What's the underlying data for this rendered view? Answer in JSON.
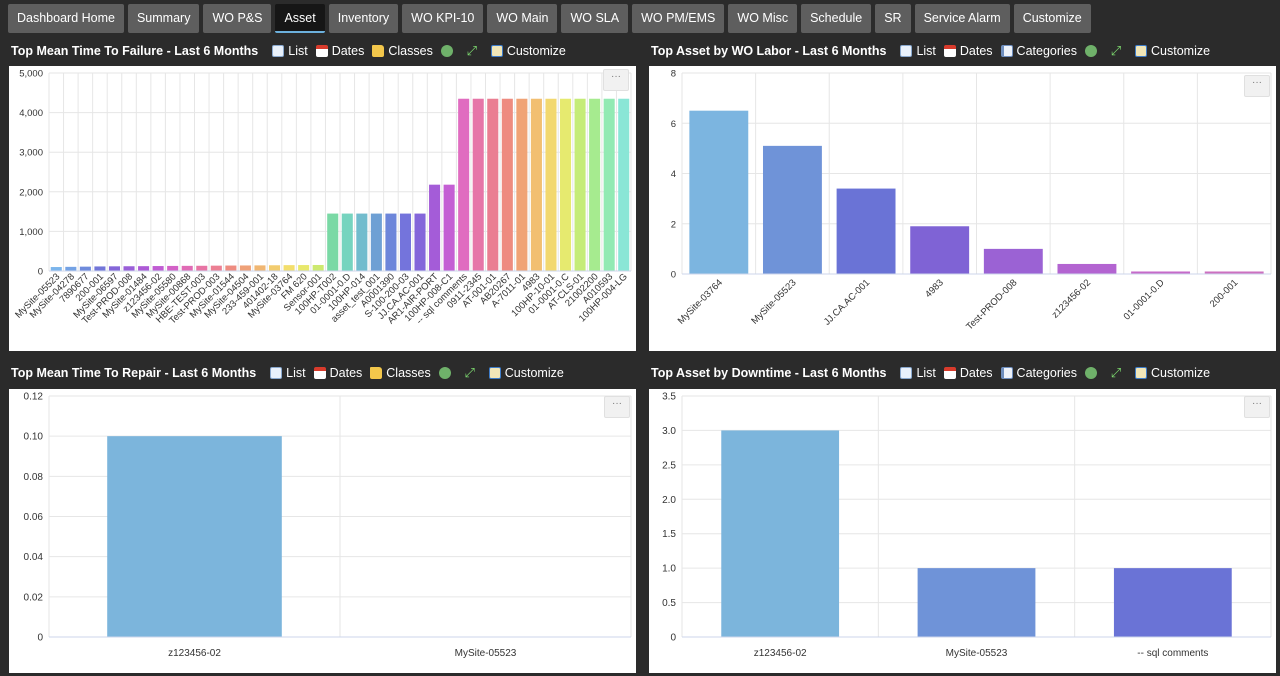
{
  "nav": {
    "tabs": [
      {
        "label": "Dashboard Home",
        "active": false
      },
      {
        "label": "Summary",
        "active": false
      },
      {
        "label": "WO P&S",
        "active": false
      },
      {
        "label": "Asset",
        "active": true
      },
      {
        "label": "Inventory",
        "active": false
      },
      {
        "label": "WO KPI-10",
        "active": false
      },
      {
        "label": "WO Main",
        "active": false
      },
      {
        "label": "WO SLA",
        "active": false
      },
      {
        "label": "WO PM/EMS",
        "active": false
      },
      {
        "label": "WO Misc",
        "active": false
      },
      {
        "label": "Schedule",
        "active": false
      },
      {
        "label": "SR",
        "active": false
      },
      {
        "label": "Service Alarm",
        "active": false
      },
      {
        "label": "Customize",
        "active": false
      }
    ]
  },
  "widgets": {
    "mttf": {
      "title": "Top Mean Time To Failure - Last 6 Months",
      "tools": {
        "list": "List",
        "dates": "Dates",
        "classes": "Classes",
        "customize": "Customize"
      },
      "menu": "···"
    },
    "labor": {
      "title": "Top Asset by WO Labor - Last 6 Months",
      "tools": {
        "list": "List",
        "dates": "Dates",
        "categories": "Categories",
        "customize": "Customize"
      },
      "menu": "···"
    },
    "mttr": {
      "title": "Top Mean Time To Repair - Last 6 Months",
      "tools": {
        "list": "List",
        "dates": "Dates",
        "classes": "Classes",
        "customize": "Customize"
      },
      "menu": "···"
    },
    "downtime": {
      "title": "Top Asset by Downtime - Last 6 Months",
      "tools": {
        "list": "List",
        "dates": "Dates",
        "categories": "Categories",
        "customize": "Customize"
      },
      "menu": "···"
    }
  },
  "chart_data": [
    {
      "id": "mttf",
      "type": "bar",
      "ylim": [
        0,
        5000
      ],
      "yticks": [
        0,
        1000,
        2000,
        3000,
        4000,
        5000
      ],
      "ytick_labels": [
        "0",
        "1,000",
        "2,000",
        "3,000",
        "4,000",
        "5,000"
      ],
      "grid": true,
      "categories": [
        "MySite-05523",
        "MySite-04278",
        "7890677",
        "200-001",
        "MySite-06597",
        "Test-PROD-008",
        "MySite-01484",
        "z123456-02",
        "MySite-05580",
        "MySite-00868",
        "HBE-TEST-003",
        "Test-PROD-003",
        "MySite-01544",
        "MySite-04504",
        "233-459-001",
        "401402-18",
        "MySite-03764",
        "FM 620",
        "Sensor-001",
        "100HP-T002",
        "01-0001-0.D",
        "100HP-014",
        "asset_test_001",
        "A0001390",
        "S-100-200-03",
        "JJ.CA.AC-001",
        "AR1-AIR-PORT",
        "100HP-008-C1",
        "-- sql comments",
        "0911-2345",
        "AT-001-01",
        "AB20267",
        "A-7011-01",
        "4983",
        "100HP-10-01",
        "01-0001-0.C",
        "AT-CLS-01",
        "21002200",
        "A010593",
        "100HP-004-LG"
      ],
      "values": [
        100,
        105,
        110,
        115,
        118,
        120,
        122,
        125,
        128,
        130,
        132,
        135,
        138,
        140,
        142,
        145,
        148,
        150,
        152,
        1450,
        1450,
        1450,
        1450,
        1450,
        1450,
        1450,
        2180,
        2180,
        4350,
        4350,
        4350,
        4350,
        4350,
        4350,
        4350,
        4350,
        4350,
        4350,
        4350,
        4350
      ],
      "colors": [
        "#7cb5ec",
        "#74a2e4",
        "#6f8bdc",
        "#7275d8",
        "#8466d8",
        "#9a5fd8",
        "#ad5ad6",
        "#c05cd3",
        "#d362c7",
        "#e06bb5",
        "#e774a4",
        "#ec7f93",
        "#ee8c80",
        "#efa178",
        "#f0b672",
        "#f2cc6f",
        "#f3de6c",
        "#e8e86c",
        "#cde96f",
        "#7ad9a5",
        "#76d4bf",
        "#72bccd",
        "#6ea0d4",
        "#6d86da",
        "#7474dc",
        "#8466da",
        "#a45cd8",
        "#c45fd4",
        "#e06cc0",
        "#e675a8",
        "#ea7e92",
        "#ee8b80",
        "#f0a376",
        "#f2bf71",
        "#f2d86f",
        "#e6ea6f",
        "#c5ec78",
        "#a6eb8f",
        "#92eab3",
        "#8ae6d6"
      ]
    },
    {
      "id": "labor",
      "type": "bar",
      "ylim": [
        0,
        8
      ],
      "yticks": [
        0,
        2,
        4,
        6,
        8
      ],
      "ytick_labels": [
        "0",
        "2",
        "4",
        "6",
        "8"
      ],
      "grid": true,
      "categories": [
        "MySite-03764",
        "MySite-05523",
        "JJ.CA.AC-001",
        "4983",
        "Test-PROD-008",
        "z123456-02",
        "01-0001-0.D",
        "200-001"
      ],
      "values": [
        6.5,
        5.1,
        3.4,
        1.9,
        1.0,
        0.4,
        0.1,
        0.1
      ],
      "colors": [
        "#7cb5e0",
        "#6f93d8",
        "#6a73d6",
        "#7f63d5",
        "#9b62d4",
        "#b364d1",
        "#c56ac9",
        "#cc70c0"
      ]
    },
    {
      "id": "mttr",
      "type": "bar",
      "ylim": [
        0,
        0.12
      ],
      "yticks": [
        0,
        0.02,
        0.04,
        0.06,
        0.08,
        0.1,
        0.12
      ],
      "ytick_labels": [
        "0",
        "0.02",
        "0.04",
        "0.06",
        "0.08",
        "0.10",
        "0.12"
      ],
      "grid": true,
      "categories": [
        "z123456-02",
        "MySite-05523"
      ],
      "values": [
        0.1,
        0
      ],
      "colors": [
        "#7cb5dc",
        "#6f93d8"
      ]
    },
    {
      "id": "downtime",
      "type": "bar",
      "ylim": [
        0,
        3.5
      ],
      "yticks": [
        0,
        0.5,
        1.0,
        1.5,
        2.0,
        2.5,
        3.0,
        3.5
      ],
      "ytick_labels": [
        "0",
        "0.5",
        "1.0",
        "1.5",
        "2.0",
        "2.5",
        "3.0",
        "3.5"
      ],
      "grid": true,
      "categories": [
        "z123456-02",
        "MySite-05523",
        "-- sql comments"
      ],
      "values": [
        3.0,
        1.0,
        1.0
      ],
      "colors": [
        "#7cb5dc",
        "#6f93d8",
        "#6a73d6"
      ]
    }
  ]
}
